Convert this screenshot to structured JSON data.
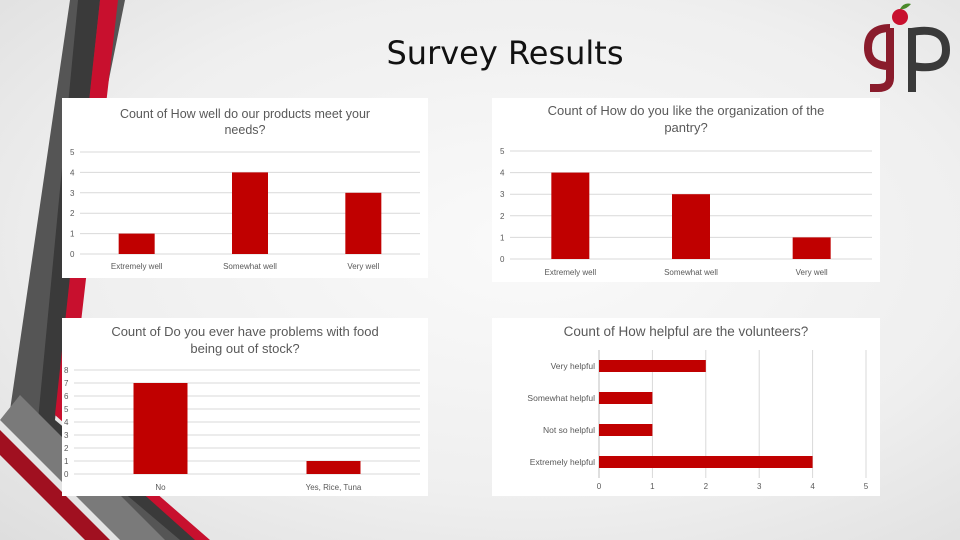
{
  "slide": {
    "title": "Survey Results"
  },
  "logo": {
    "text": "gp",
    "colors": {
      "g": "#8a1c2c",
      "p": "#3a3a3a",
      "apple": "#c8102e",
      "leaf": "#4a8a2a"
    }
  },
  "colors": {
    "bar": "#c00000",
    "grid": "#d9d9d9",
    "axis_text": "#595959"
  },
  "chart_data": [
    {
      "type": "bar",
      "title_lines": [
        "Count of How well do our products meet your",
        "needs?"
      ],
      "categories": [
        "Extremely well",
        "Somewhat well",
        "Very well"
      ],
      "values": [
        1,
        4,
        3
      ],
      "ylim": [
        0,
        5
      ],
      "yticks": [
        "0",
        "1",
        "2",
        "3",
        "4",
        "5"
      ],
      "grid": true
    },
    {
      "type": "bar",
      "title_lines": [
        "Count of How do you like the organization of the",
        "pantry?"
      ],
      "categories": [
        "Extremely well",
        "Somewhat well",
        "Very well"
      ],
      "values": [
        4,
        3,
        1
      ],
      "ylim": [
        0,
        5
      ],
      "yticks": [
        "0",
        "1",
        "2",
        "3",
        "4",
        "5"
      ],
      "grid": true
    },
    {
      "type": "bar",
      "title_lines": [
        "Count of Do you ever have problems with food",
        "being out of stock?"
      ],
      "categories": [
        "No",
        "Yes, Rice, Tuna"
      ],
      "values": [
        7,
        1
      ],
      "ylim": [
        0,
        8
      ],
      "yticks": [
        "0",
        "1",
        "2",
        "3",
        "4",
        "5",
        "6",
        "7",
        "8"
      ],
      "grid": true
    },
    {
      "type": "bar",
      "orientation": "horizontal",
      "title_lines": [
        "Count of  How helpful are the volunteers?"
      ],
      "categories": [
        "Very helpful",
        "Somewhat helpful",
        "Not so helpful",
        "Extremely helpful"
      ],
      "values": [
        2,
        1,
        1,
        4
      ],
      "xlim": [
        0,
        5
      ],
      "xticks": [
        "0",
        "1",
        "2",
        "3",
        "4",
        "5"
      ],
      "grid": true
    }
  ]
}
